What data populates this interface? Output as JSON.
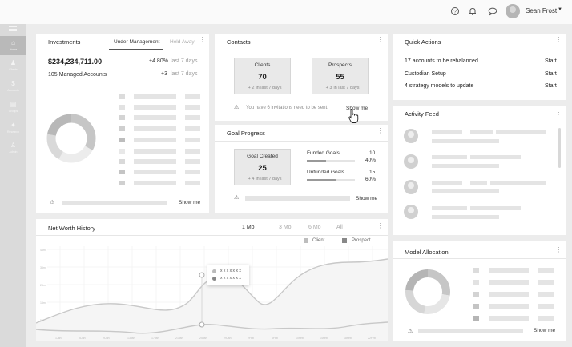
{
  "header": {
    "user_name": "Sean Frost"
  },
  "sidebar": {
    "items": [
      {
        "label": "Home",
        "glyph": "⌂"
      },
      {
        "label": "Clients",
        "glyph": "♟"
      },
      {
        "label": "Accounts",
        "glyph": "$"
      },
      {
        "label": "Groups",
        "glyph": "▤"
      },
      {
        "label": "Research",
        "glyph": "✦"
      },
      {
        "label": "Admin",
        "glyph": "♙"
      }
    ]
  },
  "investments": {
    "title": "Investments",
    "tab_active": "Under Management",
    "tab_inactive": "Held Away",
    "total": "$234,234,711.00",
    "change_pct": "+4.80%",
    "change_pct_period": "last 7 days",
    "accounts": "105 Managed Accounts",
    "accounts_change": "+3",
    "accounts_change_period": "last 7 days",
    "show_me": "Show me"
  },
  "contacts": {
    "title": "Contacts",
    "clients_label": "Clients",
    "clients_value": "70",
    "clients_change": "+ 2",
    "clients_change_period": "in last 7 days",
    "prospects_label": "Prospects",
    "prospects_value": "55",
    "prospects_change": "+ 3",
    "prospects_change_period": "in last 7 days",
    "notice": "You have 6 invitations need to be sent.",
    "show_me": "Show me"
  },
  "goal_progress": {
    "title": "Goal Progress",
    "created_label": "Goal Created",
    "created_value": "25",
    "created_change": "+ 4",
    "created_change_period": "in last 7 days",
    "funded_label": "Funded Goals",
    "funded_count": "10",
    "funded_pct": "40%",
    "funded_fraction": 0.4,
    "unfunded_label": "Unfunded Goals",
    "unfunded_count": "15",
    "unfunded_pct": "60%",
    "unfunded_fraction": 0.6,
    "show_me": "Show me"
  },
  "quick_actions": {
    "title": "Quick Actions",
    "items": [
      {
        "label": "17 accounts to be rebalanced",
        "action": "Start"
      },
      {
        "label": "Custodian Setup",
        "action": "Start"
      },
      {
        "label": "4 strategy models to update",
        "action": "Start"
      }
    ]
  },
  "activity_feed": {
    "title": "Activity Feed"
  },
  "net_worth": {
    "title": "Net Worth History",
    "ranges": [
      "1 Mo",
      "3 Mo",
      "6 Mo",
      "All"
    ],
    "active_range": "1 Mo",
    "legend_client": "Client",
    "legend_prospect": "Prospect",
    "tooltip_line1": "x x x x x x x",
    "tooltip_line2": "x x x x x x x"
  },
  "model_allocation": {
    "title": "Model Allocation",
    "show_me": "Show me"
  },
  "colors": {
    "background": "#ececec",
    "card": "#ffffff",
    "sidebar": "#dadada",
    "sidebar_active": "#b9b9b9",
    "placeholder": "#e4e4e4",
    "chart_line": "#c8c8c8"
  }
}
